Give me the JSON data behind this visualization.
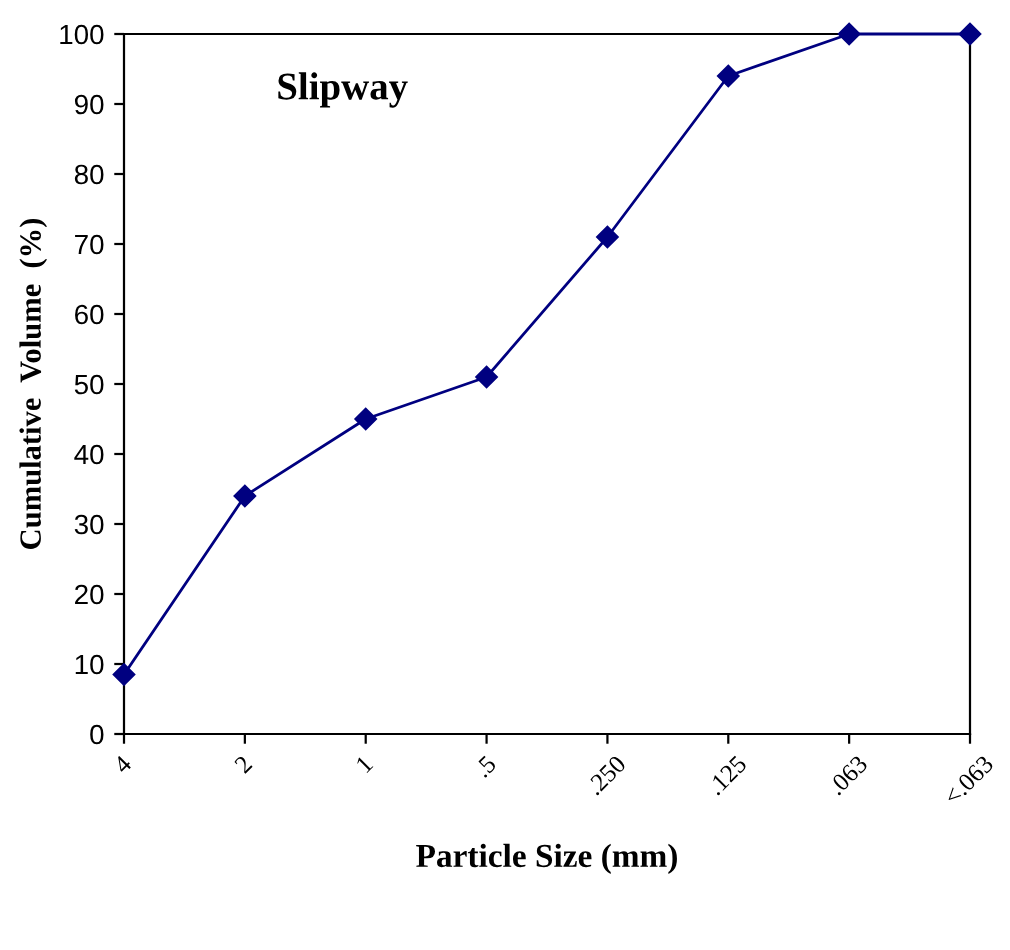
{
  "chart_data": {
    "type": "line",
    "title": "Slipway",
    "xlabel": "Particle Size (mm)",
    "ylabel": "Cumulative  Volume  (%)",
    "categories": [
      "4",
      "2",
      "1",
      ".5",
      ".250",
      ".125",
      ".063",
      "<.063"
    ],
    "series": [
      {
        "color": "#000080",
        "values": [
          8.5,
          34,
          45,
          51,
          71,
          94,
          100,
          100
        ]
      }
    ],
    "ylim": [
      0,
      100
    ],
    "yticks": [
      0,
      10,
      20,
      30,
      40,
      50,
      60,
      70,
      80,
      90,
      100
    ],
    "grid": false,
    "legend": false,
    "marker": "diamond",
    "line_style": "solid"
  }
}
